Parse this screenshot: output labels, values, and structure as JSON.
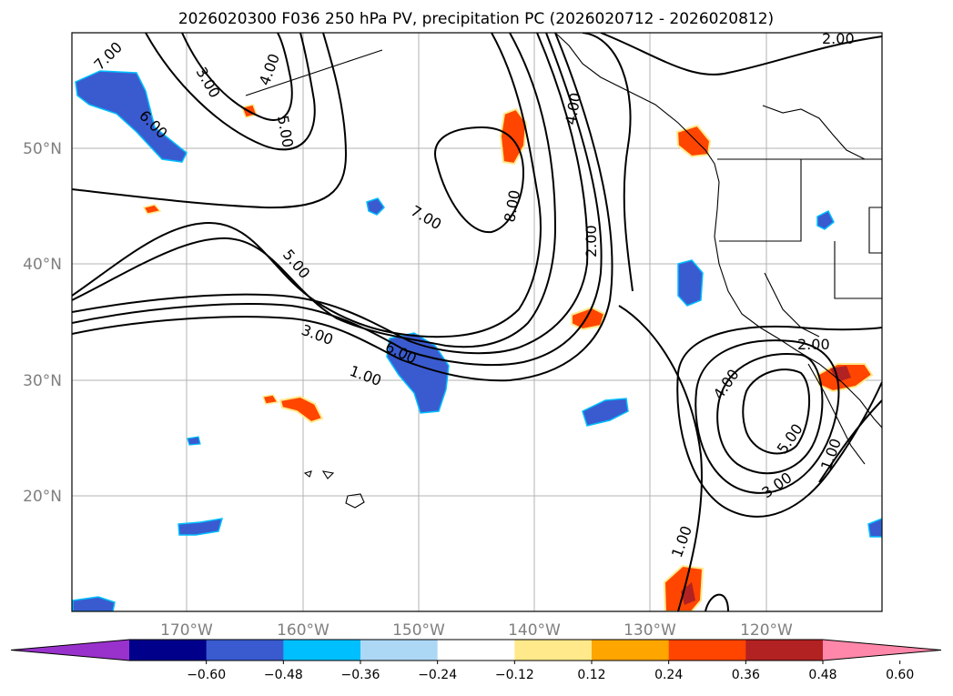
{
  "title": "2026020300 F036 250 hPa PV, precipitation PC (2026020712 - 2026020812)",
  "map": {
    "lat_labels": [
      "50°N",
      "40°N",
      "30°N",
      "20°N"
    ],
    "lon_labels": [
      "170°W",
      "160°W",
      "150°W",
      "140°W",
      "130°W",
      "120°W"
    ],
    "grid": true
  },
  "colorbar": {
    "ticks": [
      "−0.60",
      "−0.48",
      "−0.36",
      "−0.24",
      "−0.12",
      "0.12",
      "0.24",
      "0.36",
      "0.48",
      "0.60"
    ],
    "colors": [
      "#9932cc",
      "#00008b",
      "#3a5bcf",
      "#00bfff",
      "#add8f5",
      "#ffffff",
      "#ffe98a",
      "#ffa500",
      "#ff4500",
      "#b22222",
      "#ff88aa"
    ],
    "extend": "both"
  },
  "pv_contour_labels": [
    "7.00",
    "6.00",
    "3.00",
    "4.00",
    "5.00",
    "7.00",
    "8.00",
    "4.00",
    "2.00",
    "2.00",
    "5.00",
    "3.00",
    "6.00",
    "1.00",
    "4.00",
    "2.00",
    "5.00",
    "3.00",
    "1.00",
    "1.00"
  ]
}
